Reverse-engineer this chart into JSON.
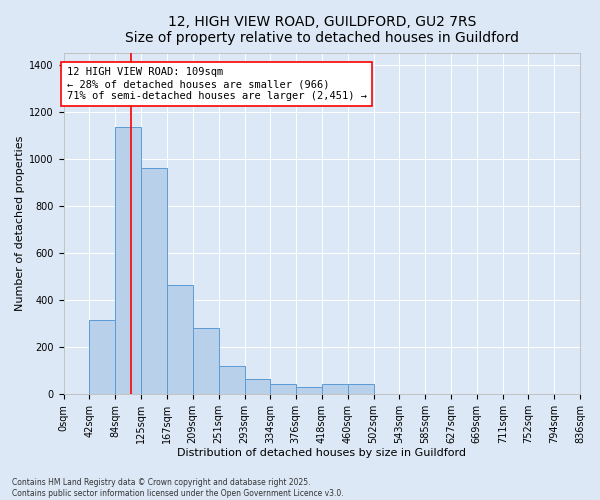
{
  "title_line1": "12, HIGH VIEW ROAD, GUILDFORD, GU2 7RS",
  "title_line2": "Size of property relative to detached houses in Guildford",
  "xlabel": "Distribution of detached houses by size in Guildford",
  "ylabel": "Number of detached properties",
  "footer_line1": "Contains HM Land Registry data © Crown copyright and database right 2025.",
  "footer_line2": "Contains public sector information licensed under the Open Government Licence v3.0.",
  "annotation_line1": "12 HIGH VIEW ROAD: 109sqm",
  "annotation_line2": "← 28% of detached houses are smaller (966)",
  "annotation_line3": "71% of semi-detached houses are larger (2,451) →",
  "bar_edges": [
    0,
    42,
    84,
    125,
    167,
    209,
    251,
    293,
    334,
    376,
    418,
    460,
    502,
    543,
    585,
    627,
    669,
    711,
    752,
    794,
    836
  ],
  "bar_heights": [
    0,
    315,
    1135,
    960,
    465,
    280,
    120,
    65,
    45,
    30,
    45,
    45,
    0,
    0,
    0,
    0,
    0,
    0,
    0,
    0
  ],
  "bar_color": "#b8d0ea",
  "bar_edge_color": "#5b9bd5",
  "red_line_x": 109,
  "ylim": [
    0,
    1450
  ],
  "yticks": [
    0,
    200,
    400,
    600,
    800,
    1000,
    1200,
    1400
  ],
  "tick_labels": [
    "0sqm",
    "42sqm",
    "84sqm",
    "125sqm",
    "167sqm",
    "209sqm",
    "251sqm",
    "293sqm",
    "334sqm",
    "376sqm",
    "418sqm",
    "460sqm",
    "502sqm",
    "543sqm",
    "585sqm",
    "627sqm",
    "669sqm",
    "711sqm",
    "752sqm",
    "794sqm",
    "836sqm"
  ],
  "background_color": "#dce8f5",
  "plot_bg_color": "#dce8f5",
  "title_fontsize": 10,
  "axis_label_fontsize": 8,
  "tick_fontsize": 7,
  "annotation_fontsize": 7.5,
  "footer_fontsize": 5.5
}
